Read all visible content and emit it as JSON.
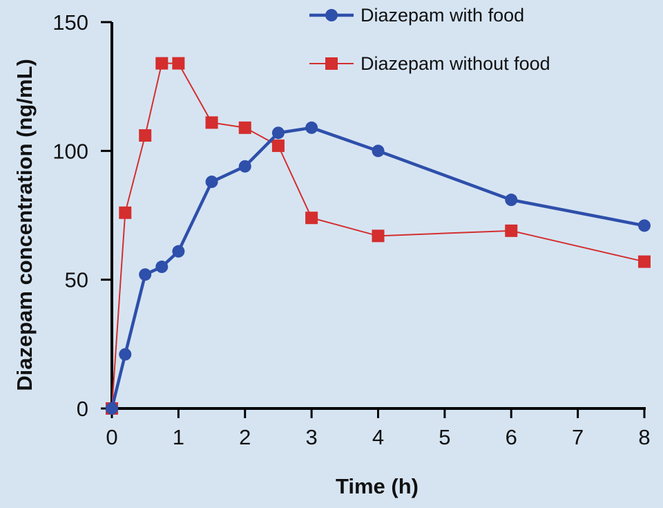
{
  "chart_data": {
    "type": "line",
    "title": "",
    "xlabel": "Time (h)",
    "ylabel": "Diazepam concentration (ng/mL)",
    "xlim": [
      0,
      8
    ],
    "ylim": [
      0,
      150
    ],
    "xticks": [
      "0",
      "1",
      "2",
      "3",
      "4",
      "5",
      "6",
      "7",
      "8"
    ],
    "yticks": [
      "0",
      "50",
      "100",
      "150"
    ],
    "grid": false,
    "legend_position": "top-right",
    "series": [
      {
        "name": "Diazepam with food",
        "color": "#2e4faa",
        "marker": "circle",
        "x": [
          0,
          0.2,
          0.5,
          0.75,
          1,
          1.5,
          2,
          2.5,
          3,
          4,
          6,
          8
        ],
        "y": [
          0,
          21,
          52,
          55,
          61,
          88,
          94,
          107,
          109,
          100,
          81,
          71
        ]
      },
      {
        "name": "Diazepam without food",
        "color": "#d42e2e",
        "marker": "square",
        "x": [
          0,
          0.2,
          0.5,
          0.75,
          1,
          1.5,
          2,
          2.5,
          3,
          4,
          6,
          8
        ],
        "y": [
          0,
          76,
          106,
          134,
          134,
          111,
          109,
          102,
          74,
          67,
          69,
          57
        ]
      }
    ]
  }
}
